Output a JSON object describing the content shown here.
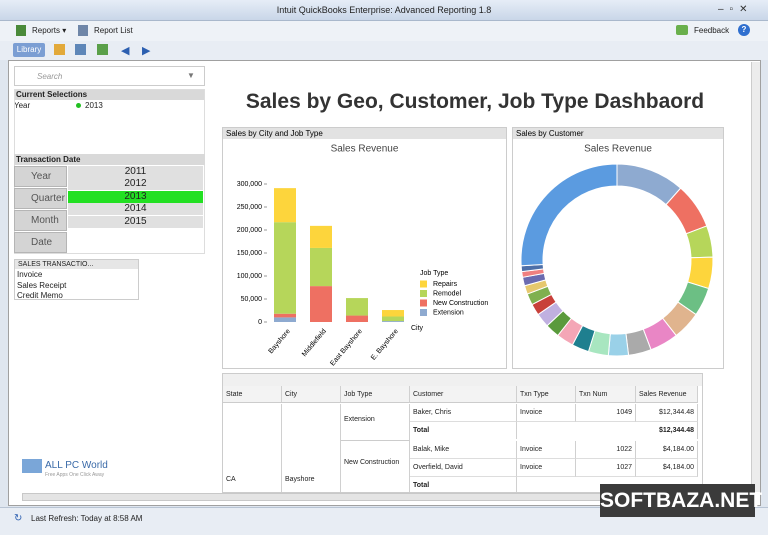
{
  "window_title": "Intuit QuickBooks Enterprise: Advanced Reporting 1.8",
  "menu": {
    "reports": "Reports",
    "report_list": "Report List",
    "feedback": "Feedback"
  },
  "library": "Library",
  "search_placeholder": "Search",
  "current_selections": {
    "title": "Current Selections",
    "field": "Year",
    "value": "2013"
  },
  "transaction_date": {
    "title": "Transaction Date",
    "fields": [
      "Year",
      "Quarter",
      "Month",
      "Date"
    ],
    "years": [
      "2011",
      "2012",
      "2013",
      "2014",
      "2015"
    ]
  },
  "sales_transactions": {
    "title": "SALES TRANSACTIO...",
    "items": [
      "Invoice",
      "Sales Receipt",
      "Credit Memo"
    ]
  },
  "dashboard_title": "Sales by Geo, Customer, Job Type Dashbaord",
  "chart_data": [
    {
      "type": "bar",
      "stacked": true,
      "panel_title": "Sales by City and Job Type",
      "title": "Sales Revenue",
      "x_label": "City",
      "legend_title": "Job Type",
      "categories": [
        "Bayshore",
        "Middlefield",
        "East Bayshore",
        "E. Bayshore"
      ],
      "series": [
        {
          "name": "Extension",
          "color": "#8eaad0",
          "values": [
            10000,
            0,
            0,
            2000
          ]
        },
        {
          "name": "New Construction",
          "color": "#ee7062",
          "values": [
            8000,
            78000,
            14000,
            0
          ]
        },
        {
          "name": "Remodel",
          "color": "#b6d65a",
          "values": [
            199000,
            83000,
            38000,
            10000
          ]
        },
        {
          "name": "Repairs",
          "color": "#fdd53c",
          "values": [
            74000,
            48000,
            0,
            14000
          ]
        }
      ],
      "ylim": [
        0,
        300000
      ],
      "yticks": [
        0,
        {
          "value": 50000,
          "label": "50,000"
        },
        {
          "value": 100000,
          "label": "100,000"
        },
        {
          "value": 150000,
          "label": "150,000"
        },
        {
          "value": 200000,
          "label": "200,000"
        },
        {
          "value": 250000,
          "label": "250,000"
        },
        {
          "value": 300000,
          "label": "300,000"
        }
      ]
    },
    {
      "type": "donut",
      "panel_title": "Sales by Customer",
      "title": "Sales Revenue",
      "values": [
        12,
        8,
        5.5,
        5.5,
        5,
        5,
        5,
        4,
        3.5,
        3.5,
        3,
        3,
        2.5,
        2.5,
        2,
        2,
        1.5,
        1.5,
        1,
        1,
        27
      ],
      "colors": [
        "#8eaad0",
        "#ee7062",
        "#b6d65a",
        "#fdd53c",
        "#6cbf84",
        "#e0b48e",
        "#e986c5",
        "#aaaaaa",
        "#9ad1e8",
        "#a8e6c0",
        "#1f7f8f",
        "#f4a6b6",
        "#5a9a3c",
        "#c0b0e0",
        "#c8403a",
        "#7fb04f",
        "#e6c86e",
        "#6b6bb0",
        "#f08080",
        "#4d6fa8",
        "#5b9be0"
      ]
    }
  ],
  "table": {
    "columns": [
      "State",
      "City",
      "Job Type",
      "Customer",
      "Txn Type",
      "Txn Num",
      "Sales Revenue"
    ],
    "state": "CA",
    "city": "Bayshore",
    "groups": [
      {
        "job_type": "Extension",
        "lines": [
          [
            "Baker, Chris",
            "Invoice",
            "1049",
            "$12,344.48"
          ]
        ],
        "total_label": "Total",
        "total": "$12,344.48"
      },
      {
        "job_type": "New Construction",
        "lines": [
          [
            "Balak, Mike",
            "Invoice",
            "1022",
            "$4,184.00"
          ],
          [
            "Overfield, David",
            "Invoice",
            "1027",
            "$4,184.00"
          ]
        ],
        "total_label": "Total"
      }
    ]
  },
  "status": "Last Refresh: Today at 8:58 AM",
  "watermarks": {
    "site": "ALL PC World",
    "tagline": "Free Apps One Click Away",
    "softbaza": "SOFTBAZA.NET"
  }
}
